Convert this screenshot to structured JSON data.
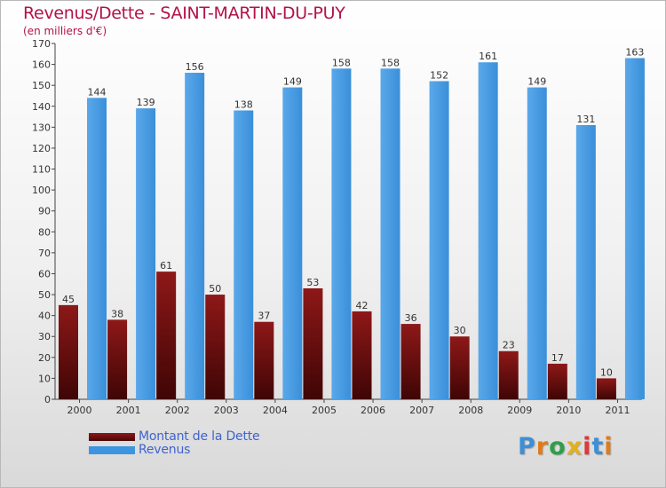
{
  "header": {
    "title": "Revenus/Dette - SAINT-MARTIN-DU-PUY",
    "unit": "(en milliers d'€)"
  },
  "colors": {
    "title": "#b2124a",
    "debt": "#6b0f0f",
    "revenue": "#3d95e0",
    "legend_text": "#3f63cf"
  },
  "legend": {
    "debt_label": "Montant de la Dette",
    "revenue_label": "Revenus"
  },
  "logo": {
    "text": "Proxiti",
    "letter_colors": [
      "#3d8fd6",
      "#e07b1a",
      "#2e9e4b",
      "#e4b01c",
      "#d93a3a",
      "#3d8fd6",
      "#e07b1a"
    ]
  },
  "chart_data": {
    "type": "bar",
    "categories": [
      "2000",
      "2001",
      "2002",
      "2003",
      "2004",
      "2005",
      "2006",
      "2007",
      "2008",
      "2009",
      "2010",
      "2011"
    ],
    "series": [
      {
        "name": "Montant de la Dette",
        "values": [
          45,
          38,
          61,
          50,
          37,
          53,
          42,
          36,
          30,
          23,
          17,
          10
        ]
      },
      {
        "name": "Revenus",
        "values": [
          144,
          139,
          156,
          138,
          149,
          158,
          158,
          152,
          161,
          149,
          131,
          163
        ]
      }
    ],
    "ylim": [
      0,
      170
    ],
    "yticks": [
      0,
      10,
      20,
      30,
      40,
      50,
      60,
      70,
      80,
      90,
      100,
      110,
      120,
      130,
      140,
      150,
      160,
      170
    ],
    "grid": false,
    "data_labels": true,
    "title": "Revenus/Dette - SAINT-MARTIN-DU-PUY",
    "ylabel": "(en milliers d'€)",
    "legend_position": "bottom-left"
  }
}
